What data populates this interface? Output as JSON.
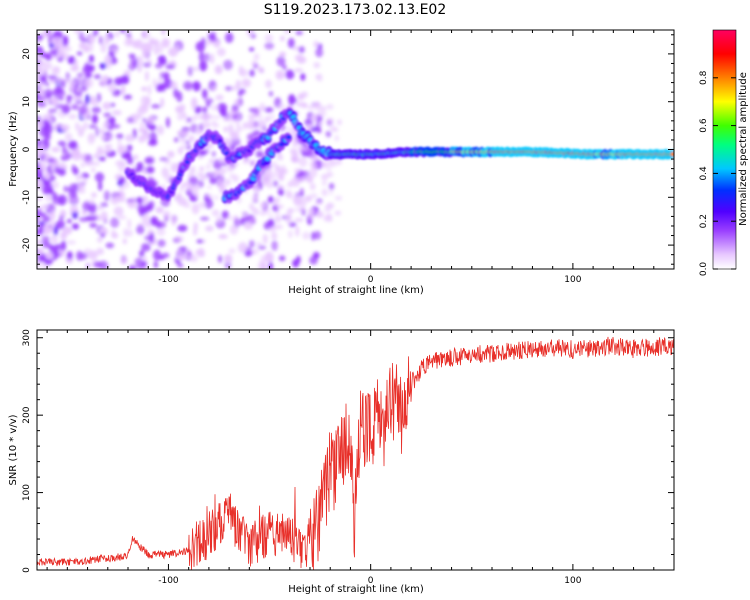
{
  "figure_title": "S119.2023.173.02.13.E02",
  "chart_data": [
    {
      "type": "heatmap",
      "xlabel": "Height of straight line (km)",
      "ylabel": "Frequency (Hz)",
      "xlim": [
        -165,
        150
      ],
      "ylim": [
        -25,
        25
      ],
      "x_ticks": [
        -100,
        0,
        100
      ],
      "x_tick_labels": [
        "-100",
        "0",
        "100"
      ],
      "y_ticks": [
        -20,
        -10,
        0,
        10,
        20
      ],
      "y_tick_labels": [
        "-20",
        "-10",
        "0",
        "10",
        "20"
      ],
      "colorbar": {
        "label": "Normalized spectral amplitude",
        "range": [
          0,
          1
        ],
        "ticks": [
          0.0,
          0.2,
          0.4,
          0.6,
          0.8
        ],
        "tick_labels": [
          "0.0",
          "0.2",
          "0.4",
          "0.6",
          "0.8"
        ],
        "colors": [
          "#ffffff",
          "#e8c8ff",
          "#9a40ff",
          "#5000ff",
          "#0030ff",
          "#00c8ff",
          "#00ff80",
          "#40ff00",
          "#ffff00",
          "#ff8000",
          "#ff0000",
          "#ff0060"
        ]
      },
      "ridges": [
        {
          "name": "main",
          "points": [
            [
              -120,
              -5
            ],
            [
              -110,
              -8
            ],
            [
              -100,
              -10
            ],
            [
              -95,
              -6
            ],
            [
              -90,
              -2
            ],
            [
              -85,
              1
            ],
            [
              -80,
              3
            ],
            [
              -75,
              2
            ],
            [
              -70,
              -2
            ],
            [
              -65,
              -1
            ],
            [
              -60,
              0
            ],
            [
              -55,
              2
            ],
            [
              -50,
              3
            ],
            [
              -45,
              6
            ],
            [
              -40,
              8
            ],
            [
              -35,
              4
            ],
            [
              -30,
              2
            ],
            [
              -25,
              0
            ],
            [
              -20,
              -1
            ],
            [
              -15,
              -1
            ],
            [
              -10,
              -1
            ],
            [
              0,
              -1
            ],
            [
              20,
              -0.5
            ],
            [
              50,
              -0.5
            ],
            [
              80,
              -0.5
            ],
            [
              110,
              -1
            ],
            [
              150,
              -1
            ]
          ]
        },
        {
          "name": "lower",
          "points": [
            [
              -72,
              -10
            ],
            [
              -65,
              -9
            ],
            [
              -60,
              -7
            ],
            [
              -55,
              -4
            ],
            [
              -50,
              -1
            ],
            [
              -45,
              1
            ],
            [
              -40,
              3
            ]
          ]
        }
      ]
    },
    {
      "type": "line",
      "xlabel": "Height of straight line (km)",
      "ylabel": "SNR (10 * v/v)",
      "xlim": [
        -165,
        150
      ],
      "ylim": [
        0,
        310
      ],
      "x_ticks": [
        -100,
        0,
        100
      ],
      "x_tick_labels": [
        "-100",
        "0",
        "100"
      ],
      "y_ticks": [
        0,
        100,
        200,
        300
      ],
      "y_tick_labels": [
        "0",
        "100",
        "200",
        "300"
      ],
      "color": "#e8302a",
      "series": [
        {
          "x": [
            -165,
            -150,
            -140,
            -130,
            -120,
            -118,
            -110,
            -100,
            -90,
            -85,
            -80,
            -75,
            -70,
            -65,
            -60,
            -55,
            -50,
            -45,
            -40,
            -35,
            -30,
            -25,
            -20,
            -15,
            -10,
            -8,
            -5,
            0,
            5,
            10,
            15,
            20,
            25,
            30,
            40,
            50,
            60,
            70,
            80,
            90,
            100,
            110,
            120,
            130,
            140,
            150
          ],
          "y": [
            10,
            10,
            12,
            15,
            18,
            40,
            20,
            20,
            25,
            35,
            45,
            60,
            80,
            45,
            30,
            40,
            45,
            50,
            40,
            30,
            35,
            70,
            120,
            150,
            170,
            60,
            190,
            180,
            210,
            220,
            200,
            240,
            260,
            270,
            275,
            278,
            280,
            282,
            285,
            288,
            285,
            287,
            290,
            285,
            288,
            290
          ]
        }
      ]
    }
  ]
}
